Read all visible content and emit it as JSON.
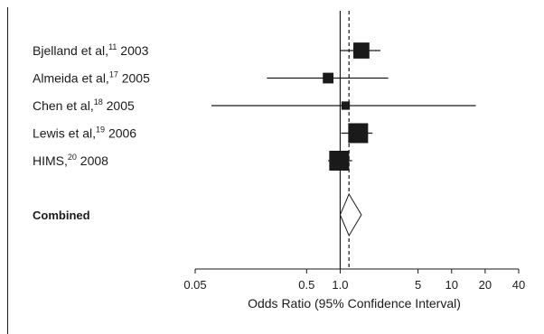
{
  "chart_data": {
    "type": "forest",
    "xlabel": "Odds Ratio (95% Confidence Interval)",
    "xscale": "log",
    "xlim": [
      0.05,
      40
    ],
    "xticks": [
      {
        "value": 0.05,
        "label": "0.05"
      },
      {
        "value": 0.5,
        "label": "0.5"
      },
      {
        "value": 1.0,
        "label": "1.0"
      },
      {
        "value": 5,
        "label": "5"
      },
      {
        "value": 10,
        "label": "10"
      },
      {
        "value": 20,
        "label": "20"
      },
      {
        "value": 40,
        "label": "40"
      }
    ],
    "reference_line": 1.0,
    "pooled_estimate_line": 1.2,
    "studies": [
      {
        "name": "Bjelland et al,",
        "ref": "11",
        "year": "2003",
        "or": 1.55,
        "ci": [
          1.0,
          2.3
        ],
        "weight": 0.75
      },
      {
        "name": "Almeida et al,",
        "ref": "17",
        "year": "2005",
        "or": 0.78,
        "ci": [
          0.22,
          2.7
        ],
        "weight": 0.4
      },
      {
        "name": "Chen et al,",
        "ref": "18",
        "year": "2005",
        "or": 1.12,
        "ci": [
          0.07,
          16.5
        ],
        "weight": 0.25
      },
      {
        "name": "Lewis et al,",
        "ref": "19",
        "year": "2006",
        "or": 1.45,
        "ci": [
          1.02,
          1.95
        ],
        "weight": 1.0
      },
      {
        "name": "HIMS,",
        "ref": "20",
        "year": "2008",
        "or": 0.98,
        "ci": [
          0.78,
          1.28
        ],
        "weight": 1.0
      }
    ],
    "combined": {
      "label": "Combined",
      "or": 1.2,
      "ci": [
        1.0,
        1.55
      ]
    }
  }
}
